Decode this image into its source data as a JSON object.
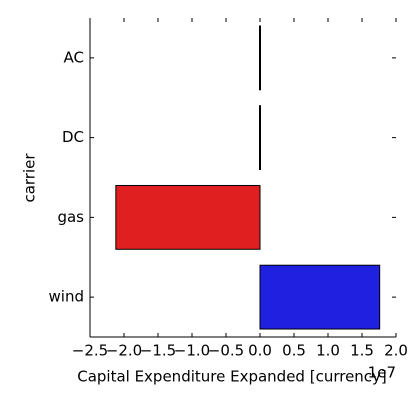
{
  "chart_data": {
    "type": "barh",
    "categories": [
      "AC",
      "DC",
      "gas",
      "wind"
    ],
    "values": [
      0,
      0,
      -2.12,
      1.76
    ],
    "colors": [
      "#e02020",
      "#e02020",
      "#e02020",
      "#2020e0"
    ],
    "xlabel": "Capital Expenditure Expanded [currency]",
    "ylabel": "carrier",
    "x_offset_label": "1e7",
    "xlim": [
      -2.5,
      2.0
    ],
    "xticks": [
      {
        "value": -2.5,
        "label": "−2.5"
      },
      {
        "value": -2.0,
        "label": "−2.0"
      },
      {
        "value": -1.5,
        "label": "−1.5"
      },
      {
        "value": -1.0,
        "label": "−1.0"
      },
      {
        "value": -0.5,
        "label": "−0.5"
      },
      {
        "value": 0,
        "label": "0.0"
      },
      0.5,
      {
        "value": 1.0,
        "label": "1.0"
      },
      1.5,
      {
        "value": 2.0,
        "label": "2.0"
      }
    ],
    "grid": false
  }
}
